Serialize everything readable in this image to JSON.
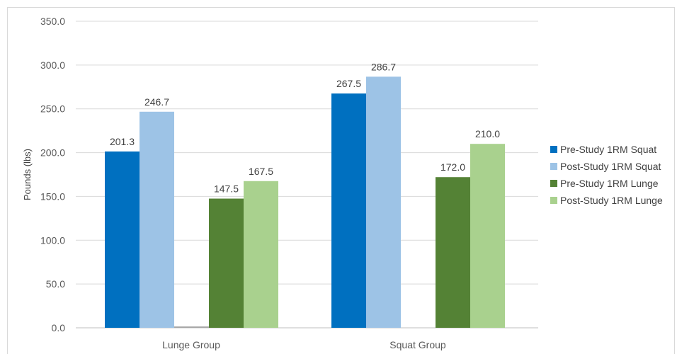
{
  "chart_data": {
    "type": "bar",
    "categories": [
      "Lunge Group",
      "Squat Group"
    ],
    "series": [
      {
        "name": "Pre-Study 1RM Squat",
        "values": [
          201.3,
          267.5
        ],
        "color": "#0070C0"
      },
      {
        "name": "Post-Study 1RM Squat",
        "values": [
          246.7,
          286.7
        ],
        "color": "#9DC3E6"
      },
      {
        "name": "Pre-Study 1RM Lunge",
        "values": [
          147.5,
          172.0
        ],
        "color": "#548235"
      },
      {
        "name": "Post-Study 1RM Lunge",
        "values": [
          167.5,
          210.0
        ],
        "color": "#A9D18E"
      }
    ],
    "ylabel": "Pounds (lbs)",
    "ylim": [
      0,
      350
    ],
    "yticks": [
      "0.0",
      "50.0",
      "100.0",
      "150.0",
      "200.0",
      "250.0",
      "300.0",
      "350.0"
    ],
    "grid": true,
    "legend_position": "right",
    "stray_marker": {
      "category": "Lunge Group",
      "value": 1.5,
      "color": "#A6A6A6"
    }
  }
}
